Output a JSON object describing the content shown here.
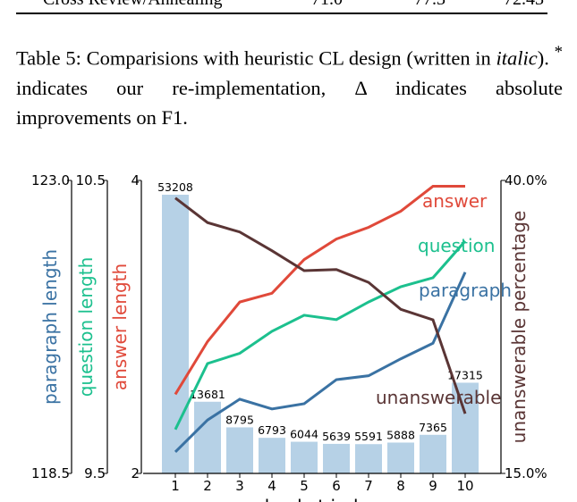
{
  "table_row": {
    "cells": [
      "Cross Review/Annealing",
      "71.0",
      "77.3",
      "72.43"
    ]
  },
  "caption": {
    "label": "Table 5:",
    "text1": "Comparisions with heuristic CL design (written in",
    "italic": "italic",
    "text2": ").",
    "mark": "*",
    "text3": "indicates our re-implementation,",
    "delta": "Δ",
    "text4": "indicates absolute improvements on F1."
  },
  "chart_data": {
    "type": "bar_line",
    "xlabel": "bucket index",
    "categories": [
      "1",
      "2",
      "3",
      "4",
      "5",
      "6",
      "7",
      "8",
      "9",
      "10"
    ],
    "bars": {
      "color": "#b6d1e6",
      "values": [
        53208,
        13681,
        8795,
        6793,
        6044,
        5639,
        5591,
        5888,
        7365,
        17315
      ]
    },
    "series": [
      {
        "name": "paragraph",
        "axis_label": "paragraph length",
        "color": "#3a72a3",
        "ylim": [
          118.5,
          123.0
        ],
        "yticks": [
          118.5,
          {
            "value": 123.0,
            "label": "123.0"
          }
        ],
        "values": [
          118.83,
          119.32,
          119.64,
          119.49,
          119.57,
          119.94,
          120.0,
          120.26,
          120.5,
          121.59
        ]
      },
      {
        "name": "question",
        "axis_label": "question length",
        "color": "#1cc08e",
        "ylim": [
          9.5,
          10.5
        ],
        "yticks": [
          9.5,
          10.5
        ],
        "values": [
          9.65,
          9.875,
          9.91,
          9.985,
          10.04,
          10.025,
          10.085,
          10.137,
          10.168,
          10.293
        ]
      },
      {
        "name": "answer",
        "axis_label": "answer length",
        "color": "#e0493a",
        "ylim": [
          2,
          4
        ],
        "yticks": [
          2,
          4
        ],
        "values": [
          2.54,
          2.9,
          3.17,
          3.23,
          3.46,
          3.6,
          3.68,
          3.79,
          3.96,
          3.96
        ]
      },
      {
        "name": "unanswerable",
        "axis_label": "unanswerable percentage",
        "color": "#5a3535",
        "ylim": [
          15,
          40
        ],
        "yticks": [
          {
            "value": 15,
            "label": "15.0%"
          },
          {
            "value": 40,
            "label": "40.0%"
          }
        ],
        "values": [
          38.5,
          36.4,
          35.6,
          34.0,
          32.3,
          32.4,
          31.3,
          29.0,
          28.1,
          20.1
        ]
      }
    ]
  }
}
